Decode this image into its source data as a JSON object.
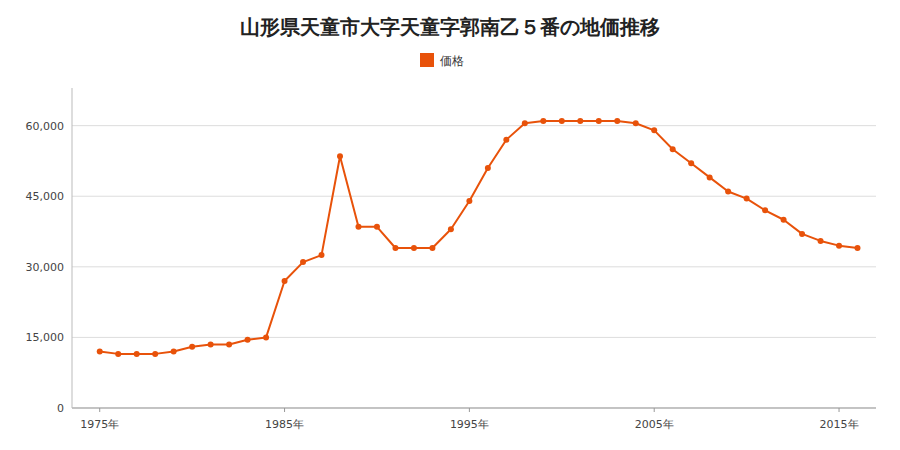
{
  "chart_data": {
    "type": "line",
    "title": "山形県天童市大字天童字郭南乙５番の地価推移",
    "x": [
      1975,
      1976,
      1977,
      1978,
      1979,
      1980,
      1981,
      1982,
      1983,
      1984,
      1985,
      1986,
      1987,
      1988,
      1989,
      1990,
      1991,
      1992,
      1993,
      1994,
      1995,
      1996,
      1997,
      1998,
      1999,
      2000,
      2001,
      2002,
      2003,
      2004,
      2005,
      2006,
      2007,
      2008,
      2009,
      2010,
      2011,
      2012,
      2013,
      2014,
      2015,
      2016
    ],
    "series": [
      {
        "name": "価格",
        "color": "#E8520A",
        "marker": "circle",
        "values": [
          12000,
          11500,
          11500,
          11500,
          12000,
          13000,
          13500,
          13500,
          14500,
          15000,
          27000,
          31000,
          32500,
          53500,
          38500,
          38500,
          34000,
          34000,
          34000,
          38000,
          44000,
          51000,
          57000,
          60500,
          61000,
          61000,
          61000,
          61000,
          61000,
          60500,
          59000,
          55000,
          52000,
          49000,
          46000,
          44500,
          42000,
          40000,
          37000,
          35500,
          34500,
          34000
        ]
      }
    ],
    "xlim": [
      1973.5,
      2017
    ],
    "xticks": [
      {
        "value": 1975,
        "label": "1975年"
      },
      {
        "value": 1985,
        "label": "1985年"
      },
      {
        "value": 1995,
        "label": "1995年"
      },
      {
        "value": 2005,
        "label": "2005年"
      },
      {
        "value": 2015,
        "label": "2015年"
      }
    ],
    "ylim": [
      0,
      68000
    ],
    "yticks": [
      0,
      {
        "value": 15000,
        "label": "15,000"
      },
      {
        "value": 30000,
        "label": "30,000"
      },
      {
        "value": 45000,
        "label": "45,000"
      },
      {
        "value": 60000,
        "label": "60,000"
      }
    ],
    "grid": true,
    "legend": "top"
  }
}
